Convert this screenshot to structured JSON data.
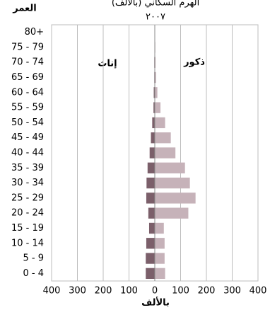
{
  "chart_data": {
    "type": "bar",
    "orientation": "horizontal",
    "stacked": false,
    "title": "الهرم السكاني (بالألف)",
    "subtitle": "٢٠٠٧",
    "y_label": "العمر",
    "x_label": "بالألف",
    "annotations": [
      "إناث",
      "ذكور"
    ],
    "categories": [
      "0 - 4",
      "5 - 9",
      "10 - 14",
      "15 - 19",
      "20 - 24",
      "25 - 29",
      "30 - 34",
      "35 - 39",
      "40 - 44",
      "45 - 49",
      "50 - 54",
      "55 - 59",
      "60 - 64",
      "65 - 69",
      "70 - 74",
      "75 - 79",
      "80+"
    ],
    "series": [
      {
        "name": "إناث",
        "color": "#7b5f6a",
        "values": [
          -35,
          -35,
          -33,
          -22,
          -25,
          -33,
          -32,
          -28,
          -20,
          -15,
          -10,
          -5,
          -4,
          -2,
          -2,
          -1,
          -1
        ]
      },
      {
        "name": "ذكور",
        "color": "#c6b2b9",
        "values": [
          40,
          38,
          38,
          35,
          130,
          158,
          136,
          117,
          80,
          62,
          40,
          22,
          10,
          5,
          3,
          2,
          1
        ]
      }
    ],
    "xlim": [
      -400,
      400
    ],
    "xticks": [
      {
        "value": -400,
        "label": "400"
      },
      {
        "value": -300,
        "label": "300"
      },
      {
        "value": -200,
        "label": "200"
      },
      {
        "value": -100,
        "label": "100"
      },
      0,
      100,
      200,
      300,
      400
    ],
    "grid": true
  }
}
